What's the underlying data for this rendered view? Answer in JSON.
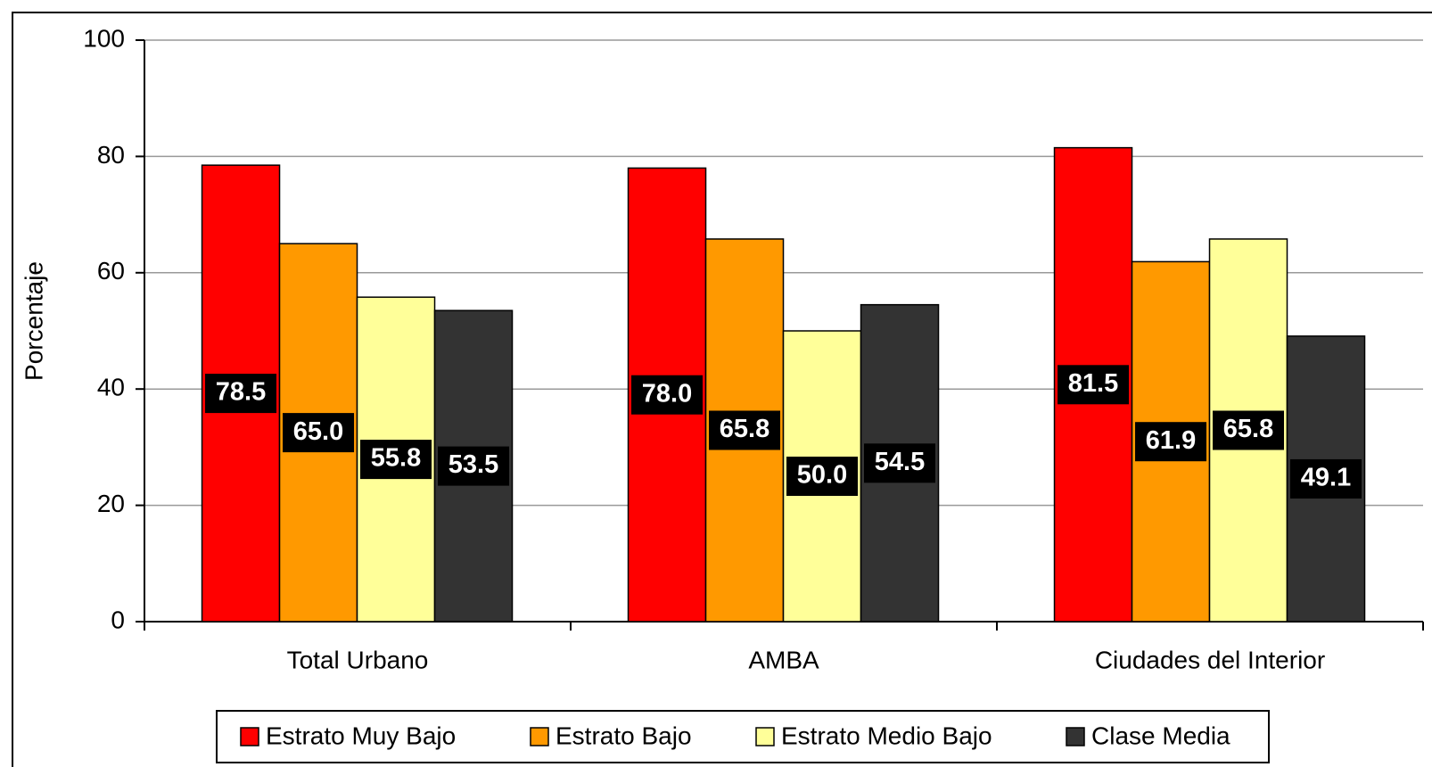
{
  "chart_data": {
    "type": "bar",
    "y_label": "Porcentaje",
    "categories": [
      "Total Urbano",
      "AMBA",
      "Ciudades del Interior"
    ],
    "series": [
      {
        "name": "Estrato Muy Bajo",
        "color": "#ff0000",
        "values": [
          78.5,
          78.0,
          81.5
        ],
        "value_labels": [
          "78.5",
          "78.0",
          "81.5"
        ]
      },
      {
        "name": "Estrato Bajo",
        "color": "#ff9900",
        "values": [
          65.0,
          65.8,
          61.9
        ],
        "value_labels": [
          "65.0",
          "65.8",
          "61.9"
        ]
      },
      {
        "name": "Estrato Medio Bajo",
        "color": "#ffff99",
        "values": [
          55.8,
          50.0,
          65.8
        ],
        "value_labels": [
          "55.8",
          "50.0",
          "65.8"
        ]
      },
      {
        "name": "Clase Media",
        "color": "#333333",
        "values": [
          53.5,
          54.5,
          49.1
        ],
        "value_labels": [
          "53.5",
          "54.5",
          "49.1"
        ]
      }
    ],
    "ylim": [
      0,
      100
    ],
    "yticks": [
      0,
      20,
      40,
      60,
      80,
      100
    ],
    "grid": true,
    "legend": "bottom"
  }
}
